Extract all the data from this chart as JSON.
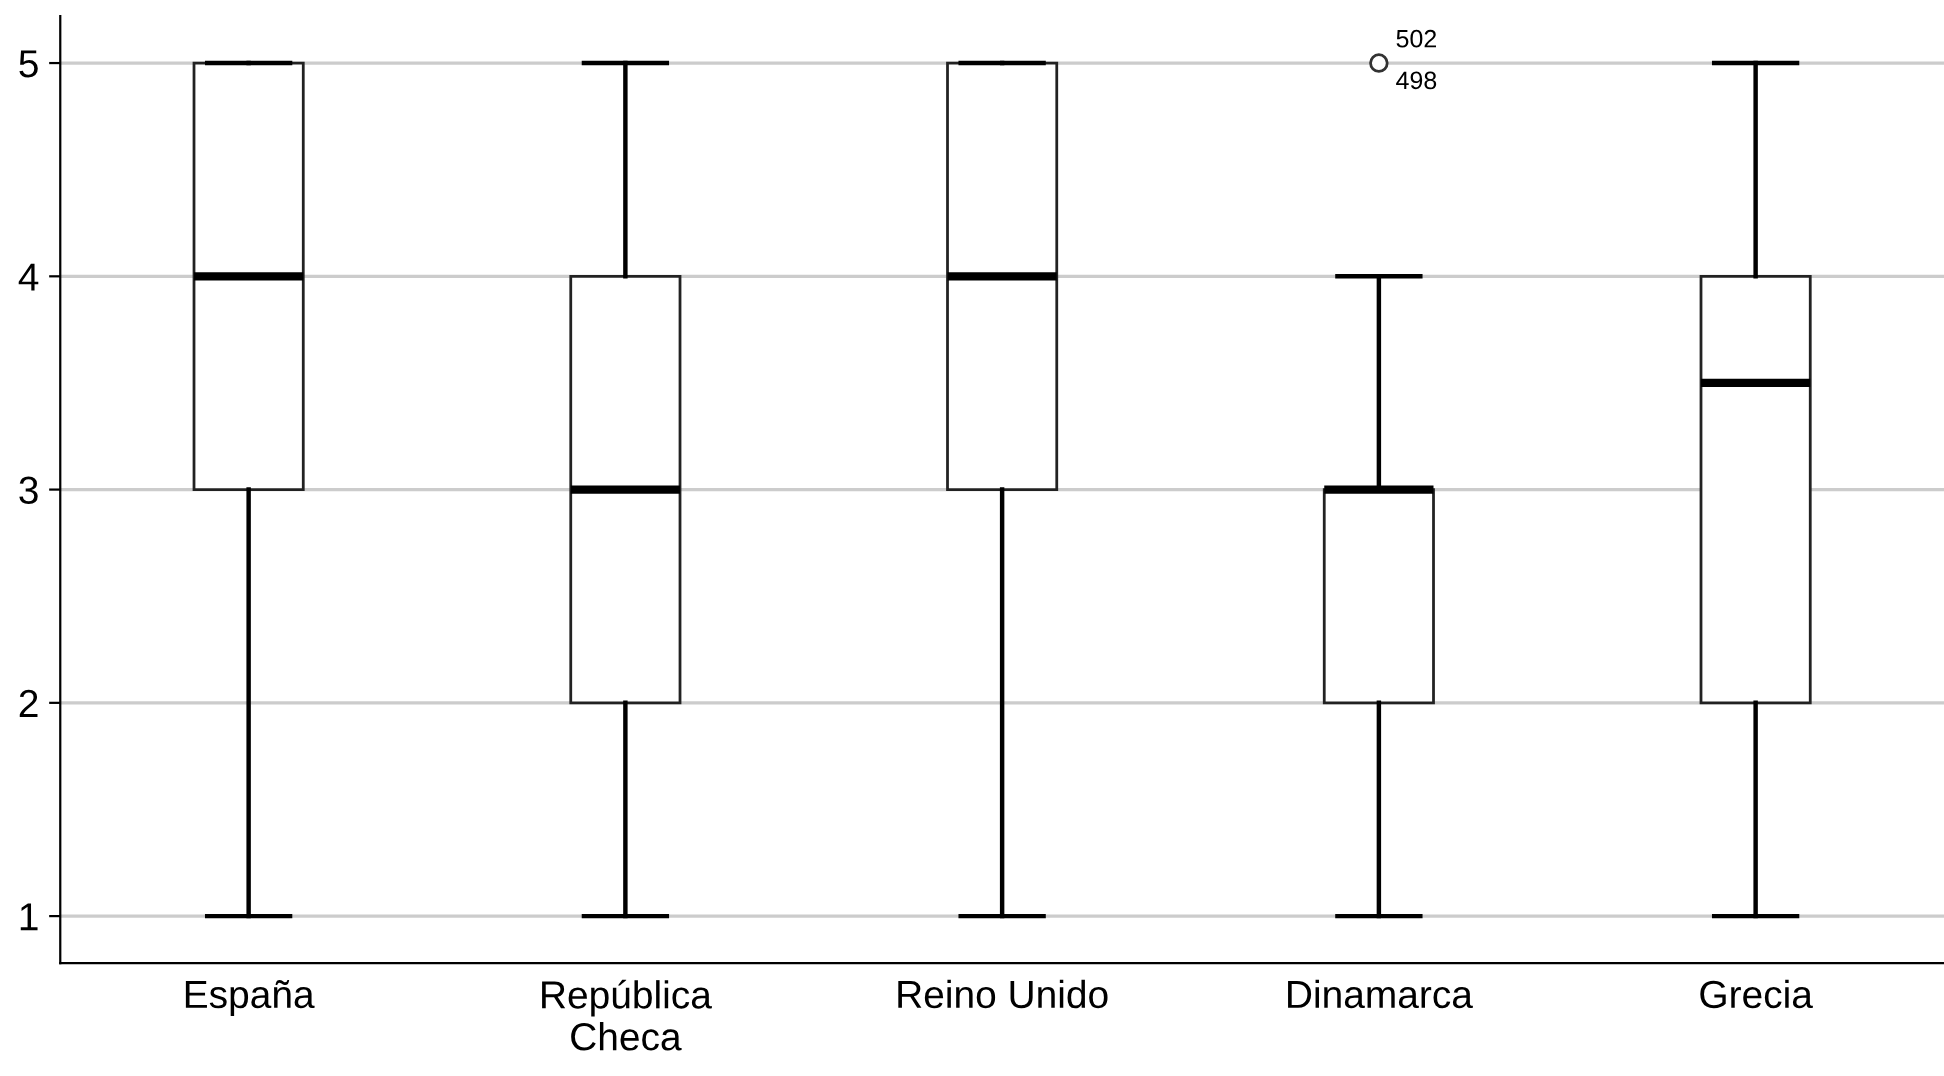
{
  "chart_data": {
    "type": "box",
    "categories": [
      "España",
      "República\nCheca",
      "Reino Unido",
      "Dinamarca",
      "Grecia"
    ],
    "boxes": [
      {
        "low": 1,
        "q1": 3,
        "median": 4,
        "q3": 5,
        "high": 5
      },
      {
        "low": 1,
        "q1": 2,
        "median": 3,
        "q3": 4,
        "high": 5
      },
      {
        "low": 1,
        "q1": 3,
        "median": 4,
        "q3": 5,
        "high": 5
      },
      {
        "low": 1,
        "q1": 2,
        "median": 3,
        "q3": 3,
        "high": 4,
        "outliers": [
          5
        ]
      },
      {
        "low": 1,
        "q1": 2,
        "median": 3.5,
        "q3": 4,
        "high": 5
      }
    ],
    "annotations": [
      "502",
      "498"
    ],
    "ylim": [
      0.78,
      5.22
    ],
    "yticks": [
      1,
      2,
      3,
      4,
      5
    ],
    "grid": "y",
    "legend": false
  }
}
